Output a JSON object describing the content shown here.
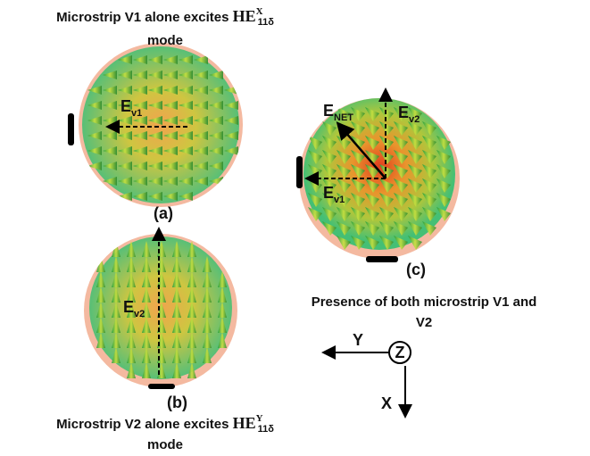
{
  "panel_a": {
    "caption": "Microstrip V1 alone excites ",
    "mode_name": "HE",
    "mode_sup": "X",
    "mode_sub": "11δ",
    "caption_end": "mode",
    "label": "(a)",
    "field": {
      "base": "E",
      "sub": "v1"
    }
  },
  "panel_b": {
    "caption": "Microstrip V2 alone excites ",
    "mode_name": "HE",
    "mode_sup": "Y",
    "mode_sub": "11δ",
    "caption_end": "mode",
    "label": "(b)",
    "field": {
      "base": "E",
      "sub": "v2"
    }
  },
  "panel_c": {
    "caption_line1": "Presence of both microstrip V1 and",
    "caption_line2": "V2",
    "label": "(c)",
    "field_net": {
      "base": "E",
      "sub": "NET"
    },
    "field_v1": {
      "base": "E",
      "sub": "v1"
    },
    "field_v2": {
      "base": "E",
      "sub": "v2"
    }
  },
  "axes": {
    "y": "Y",
    "z": "Z",
    "x": "X"
  }
}
